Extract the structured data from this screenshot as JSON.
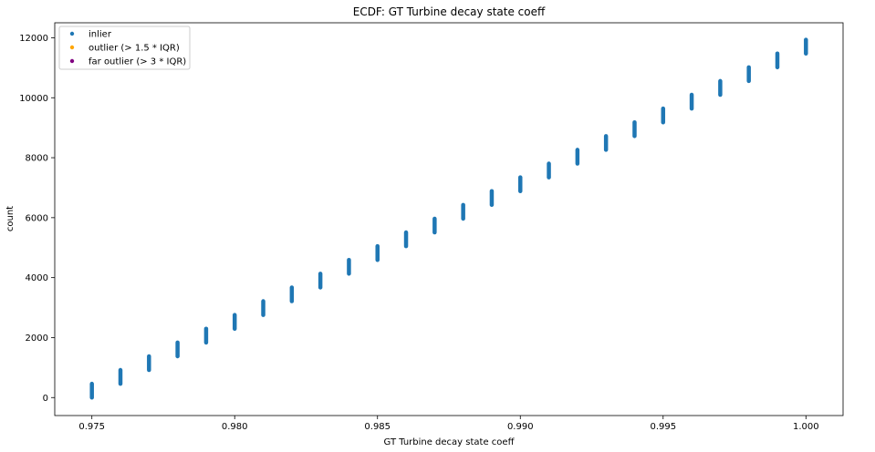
{
  "chart_data": {
    "type": "scatter",
    "title": "ECDF: GT Turbine decay state coeff",
    "xlabel": "GT Turbine decay state coeff",
    "ylabel": "count",
    "xlim": [
      0.9737,
      1.0013
    ],
    "ylim": [
      -600,
      12500
    ],
    "xticks": [
      0.975,
      0.98,
      0.985,
      0.99,
      0.995,
      1.0
    ],
    "xtick_labels": [
      "0.975",
      "0.980",
      "0.985",
      "0.990",
      "0.995",
      "1.000"
    ],
    "yticks": [
      0,
      2000,
      4000,
      6000,
      8000,
      10000,
      12000
    ],
    "ytick_labels": [
      "0",
      "2000",
      "4000",
      "6000",
      "8000",
      "10000",
      "12000"
    ],
    "grid": false,
    "legend_position": "top-left",
    "series": [
      {
        "name": "inlier",
        "color": "#1f77b4",
        "marker": "dot",
        "segments": [
          {
            "x": 0.975,
            "y_start": 0,
            "y_end": 459
          },
          {
            "x": 0.976,
            "y_start": 459,
            "y_end": 918
          },
          {
            "x": 0.977,
            "y_start": 918,
            "y_end": 1377
          },
          {
            "x": 0.978,
            "y_start": 1377,
            "y_end": 1836
          },
          {
            "x": 0.979,
            "y_start": 1836,
            "y_end": 2295
          },
          {
            "x": 0.98,
            "y_start": 2295,
            "y_end": 2754
          },
          {
            "x": 0.981,
            "y_start": 2754,
            "y_end": 3213
          },
          {
            "x": 0.982,
            "y_start": 3213,
            "y_end": 3672
          },
          {
            "x": 0.983,
            "y_start": 3672,
            "y_end": 4131
          },
          {
            "x": 0.984,
            "y_start": 4131,
            "y_end": 4590
          },
          {
            "x": 0.985,
            "y_start": 4590,
            "y_end": 5049
          },
          {
            "x": 0.986,
            "y_start": 5049,
            "y_end": 5508
          },
          {
            "x": 0.987,
            "y_start": 5508,
            "y_end": 5967
          },
          {
            "x": 0.988,
            "y_start": 5967,
            "y_end": 6426
          },
          {
            "x": 0.989,
            "y_start": 6426,
            "y_end": 6885
          },
          {
            "x": 0.99,
            "y_start": 6885,
            "y_end": 7344
          },
          {
            "x": 0.991,
            "y_start": 7344,
            "y_end": 7803
          },
          {
            "x": 0.992,
            "y_start": 7803,
            "y_end": 8262
          },
          {
            "x": 0.993,
            "y_start": 8262,
            "y_end": 8721
          },
          {
            "x": 0.994,
            "y_start": 8721,
            "y_end": 9180
          },
          {
            "x": 0.995,
            "y_start": 9180,
            "y_end": 9639
          },
          {
            "x": 0.996,
            "y_start": 9639,
            "y_end": 10098
          },
          {
            "x": 0.997,
            "y_start": 10098,
            "y_end": 10557
          },
          {
            "x": 0.998,
            "y_start": 10557,
            "y_end": 11016
          },
          {
            "x": 0.999,
            "y_start": 11016,
            "y_end": 11475
          },
          {
            "x": 1.0,
            "y_start": 11475,
            "y_end": 11934
          }
        ]
      },
      {
        "name": "outlier (> 1.5 * IQR)",
        "color": "#ffa500",
        "marker": "dot",
        "segments": []
      },
      {
        "name": "far outlier (> 3 * IQR)",
        "color": "#800080",
        "marker": "dot",
        "segments": []
      }
    ]
  }
}
